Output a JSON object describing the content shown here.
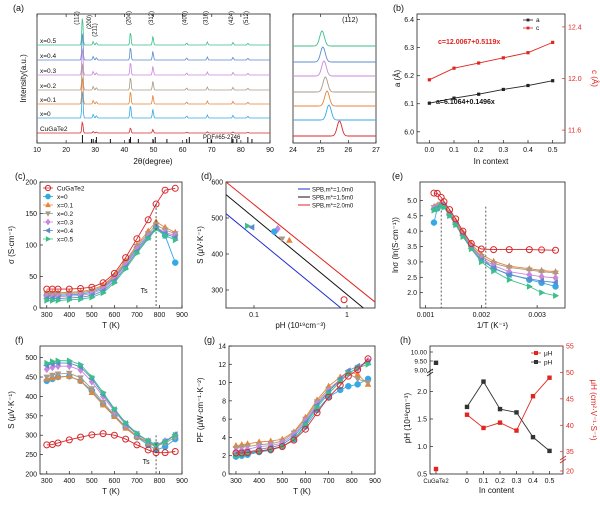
{
  "colors": {
    "red": "#e0261f",
    "black": "#111111",
    "blue": "#1f2fd0",
    "x0": "#35a9e6",
    "x01": "#e7833a",
    "x02": "#a89a86",
    "x03": "#c987dd",
    "x04": "#5b8bcd",
    "x05": "#3cbf8a",
    "cugate": "#d8272b"
  },
  "chart_data": [
    {
      "panel": "(a)",
      "type": "line",
      "xlabel": "2θ(degree)",
      "ylabel": "Intensity(a.u.)",
      "xlim": [
        10,
        90
      ],
      "xticks": [
        10,
        20,
        30,
        40,
        50,
        60,
        70,
        80,
        90
      ],
      "series": [
        {
          "name": "x=0.5",
          "color": "#3cbf8a"
        },
        {
          "name": "x=0.4",
          "color": "#5b8bcd"
        },
        {
          "name": "x=0.3",
          "color": "#c987dd"
        },
        {
          "name": "x=0.2",
          "color": "#a89a86"
        },
        {
          "name": "x=0.1",
          "color": "#e7833a"
        },
        {
          "name": "x=0",
          "color": "#35a9e6"
        },
        {
          "name": "CuGaTe2",
          "color": "#d8272b"
        }
      ],
      "peaks": [
        {
          "label": "(112)",
          "x": 25.6,
          "h": 1.0
        },
        {
          "label": "(200)",
          "x": 29.3,
          "h": 0.12
        },
        {
          "label": "(211)",
          "x": 30.4,
          "h": 0.08
        },
        {
          "label": "(204)",
          "x": 42.1,
          "h": 0.45
        },
        {
          "label": "(312)",
          "x": 49.8,
          "h": 0.3
        },
        {
          "label": "(400)",
          "x": 61.4,
          "h": 0.07
        },
        {
          "label": "(316)",
          "x": 68.5,
          "h": 0.1
        },
        {
          "label": "(424)",
          "x": 77.3,
          "h": 0.09
        },
        {
          "label": "(512)",
          "x": 82.4,
          "h": 0.06
        }
      ],
      "ref_label": "PDF#65-2746",
      "ref_sticks": [
        25.6,
        28.7,
        29.3,
        30.4,
        35.2,
        41.7,
        42.1,
        44.8,
        49.8,
        50.6,
        54.6,
        61.4,
        62.3,
        68.5,
        69.8,
        76.9,
        77.3,
        78.6,
        82.4,
        83.8
      ]
    },
    {
      "panel": "(a) zoom",
      "type": "line",
      "title": "(112)",
      "xlim": [
        24,
        27
      ],
      "xticks": [
        24,
        25,
        26,
        27
      ],
      "peak_positions": [
        25.05,
        25.08,
        25.12,
        25.17,
        25.23,
        25.3,
        25.68
      ]
    },
    {
      "panel": "(b)",
      "type": "line",
      "xlabel": "In context",
      "ylabel": "a (Å)",
      "y2label": "c (Å)",
      "xlim": [
        -0.05,
        0.55
      ],
      "ylim": [
        5.96,
        6.42
      ],
      "y2lim": [
        11.5,
        12.5
      ],
      "xticks": [
        0.0,
        0.1,
        0.2,
        0.3,
        0.4,
        0.5
      ],
      "yticks": [
        6.0,
        6.1,
        6.2,
        6.3,
        6.4
      ],
      "y2ticks": [
        11.6,
        12.0,
        12.4
      ],
      "legend": [
        "a",
        "c"
      ],
      "x": [
        0,
        0.1,
        0.2,
        0.3,
        0.4,
        0.5
      ],
      "a": [
        6.102,
        6.12,
        6.134,
        6.151,
        6.165,
        6.182
      ],
      "c": [
        11.99,
        12.08,
        12.12,
        12.16,
        12.2,
        12.28
      ],
      "fit_a": "a=6.1064+0.1496x",
      "fit_c": "c=12.0067+0.5119x"
    },
    {
      "panel": "(c)",
      "type": "line",
      "xlabel": "T (K)",
      "ylabel": "σ (S·cm⁻¹)",
      "xlim": [
        270,
        900
      ],
      "ylim": [
        0,
        200
      ],
      "xticks": [
        300,
        400,
        500,
        600,
        700,
        800,
        900
      ],
      "yticks": [
        0,
        50,
        100,
        150,
        200
      ],
      "annotation": "Ts",
      "ts_x": 785,
      "legend": [
        "CuGaTe2",
        "x=0",
        "x=0.1",
        "x=0.2",
        "x=0.3",
        "x=0.4",
        "x=0.5"
      ],
      "x": [
        300,
        325,
        350,
        400,
        450,
        500,
        550,
        600,
        650,
        700,
        750,
        785,
        825,
        870
      ],
      "series": [
        {
          "name": "CuGaTe2",
          "values": [
            30,
            30,
            30,
            30,
            31,
            33,
            40,
            55,
            80,
            110,
            140,
            165,
            187,
            190
          ]
        },
        {
          "name": "x=0",
          "values": [
            20,
            20,
            20,
            21,
            22,
            25,
            32,
            48,
            70,
            95,
            115,
            128,
            115,
            72
          ]
        },
        {
          "name": "x=0.1",
          "values": [
            24,
            24,
            24,
            25,
            26,
            29,
            36,
            52,
            75,
            100,
            122,
            137,
            128,
            120
          ]
        },
        {
          "name": "x=0.2",
          "values": [
            22,
            22,
            22,
            23,
            24,
            27,
            34,
            50,
            72,
            98,
            118,
            132,
            124,
            118
          ]
        },
        {
          "name": "x=0.3",
          "values": [
            18,
            18,
            18,
            19,
            20,
            23,
            30,
            46,
            68,
            93,
            114,
            128,
            120,
            115
          ]
        },
        {
          "name": "x=0.4",
          "values": [
            15,
            15,
            15,
            16,
            17,
            20,
            27,
            43,
            65,
            90,
            112,
            127,
            118,
            112
          ]
        },
        {
          "name": "x=0.5",
          "values": [
            12,
            12,
            12,
            13,
            14,
            17,
            24,
            40,
            62,
            87,
            110,
            125,
            115,
            108
          ]
        }
      ]
    },
    {
      "panel": "(d)",
      "type": "scatter",
      "xlabel": "pH (10¹⁹cm⁻³)",
      "ylabel": "S (μV·K⁻¹)",
      "log_x": true,
      "xlim": [
        0.05,
        2
      ],
      "ylim": [
        250,
        600
      ],
      "xticks": [
        0.1,
        1
      ],
      "yticks": [
        300,
        400,
        500,
        600
      ],
      "legend": [
        "SPB,m*=1.0m0",
        "SPB,m*=1.5m0",
        "SPB,m*=2.0m0"
      ],
      "lines": [
        {
          "name": "SPB,m*=1.0m0",
          "color": "#1f2fd0",
          "x": [
            0.05,
            0.86
          ],
          "y": [
            512,
            250
          ]
        },
        {
          "name": "SPB,m*=1.5m0",
          "color": "#111111",
          "x": [
            0.05,
            1.5
          ],
          "y": [
            565,
            250
          ]
        },
        {
          "name": "SPB,m*=2.0m0",
          "color": "#e0261f",
          "x": [
            0.05,
            2.4
          ],
          "y": [
            600,
            250
          ]
        }
      ],
      "points": [
        {
          "x": 0.085,
          "y": 478,
          "s": "x=0.5"
        },
        {
          "x": 0.095,
          "y": 474,
          "s": "x=0.4"
        },
        {
          "x": 0.18,
          "y": 470,
          "s": "x=0.3"
        },
        {
          "x": 0.165,
          "y": 462,
          "s": "x=0"
        },
        {
          "x": 0.2,
          "y": 442,
          "s": "x=0.2"
        },
        {
          "x": 0.24,
          "y": 438,
          "s": "x=0.1"
        },
        {
          "x": 0.93,
          "y": 273,
          "s": "CuGaTe2"
        }
      ]
    },
    {
      "panel": "(e)",
      "type": "line",
      "xlabel": "1/T (K⁻¹)",
      "ylabel": "lnσ (ln(S·cm⁻¹))",
      "xlim": [
        0.0009,
        0.0035
      ],
      "ylim": [
        1.5,
        5.6
      ],
      "xticks": [
        0.001,
        0.002,
        0.003
      ],
      "yticks": [
        2.0,
        2.5,
        3.0,
        3.5,
        4.0,
        4.5,
        5.0
      ],
      "x": [
        0.00115,
        0.00121,
        0.00128,
        0.00133,
        0.00143,
        0.00154,
        0.00167,
        0.00182,
        0.002,
        0.00222,
        0.0025,
        0.00286,
        0.00308,
        0.00333
      ],
      "vlines": [
        0.00128,
        0.00208
      ],
      "series": [
        {
          "name": "CuGaTe2",
          "values": [
            5.24,
            5.23,
            5.1,
            4.96,
            4.7,
            4.4,
            4.0,
            3.6,
            3.42,
            3.4,
            3.4,
            3.4,
            3.39,
            3.38
          ]
        },
        {
          "name": "x=0",
          "values": [
            4.28,
            4.74,
            4.86,
            4.82,
            4.56,
            4.27,
            3.9,
            3.52,
            3.15,
            2.78,
            2.6,
            2.42,
            2.32,
            2.2
          ]
        },
        {
          "name": "x=0.1",
          "values": [
            4.79,
            4.85,
            4.92,
            4.88,
            4.62,
            4.33,
            3.96,
            3.58,
            3.24,
            3.02,
            2.86,
            2.78,
            2.72,
            2.68
          ]
        },
        {
          "name": "x=0.2",
          "values": [
            4.77,
            4.82,
            4.88,
            4.85,
            4.58,
            4.28,
            3.92,
            3.52,
            3.18,
            2.95,
            2.82,
            2.74,
            2.68,
            2.64
          ]
        },
        {
          "name": "x=0.3",
          "values": [
            4.74,
            4.79,
            4.85,
            4.82,
            4.54,
            4.25,
            3.88,
            3.48,
            3.12,
            2.88,
            2.68,
            2.58,
            2.52,
            2.48
          ]
        },
        {
          "name": "x=0.4",
          "values": [
            4.71,
            4.76,
            4.84,
            4.8,
            4.52,
            4.22,
            3.85,
            3.44,
            3.06,
            2.8,
            2.58,
            2.45,
            2.38,
            2.33
          ]
        },
        {
          "name": "x=0.5",
          "values": [
            4.68,
            4.73,
            4.83,
            4.78,
            4.5,
            4.2,
            3.82,
            3.42,
            3.0,
            2.7,
            2.42,
            2.2,
            2.0,
            1.9
          ]
        }
      ]
    },
    {
      "panel": "(f)",
      "type": "line",
      "xlabel": "T (K)",
      "ylabel": "S (μV·K⁻¹)",
      "xlim": [
        270,
        900
      ],
      "ylim": [
        200,
        530
      ],
      "xticks": [
        300,
        400,
        500,
        600,
        700,
        800,
        900
      ],
      "yticks": [
        200,
        250,
        300,
        350,
        400,
        450,
        500
      ],
      "annotation": "Ts",
      "ts_x": 785,
      "x": [
        300,
        325,
        350,
        400,
        450,
        500,
        550,
        600,
        650,
        700,
        750,
        785,
        825,
        870
      ],
      "series": [
        {
          "name": "CuGaTe2",
          "values": [
            275,
            276,
            280,
            288,
            295,
            301,
            304,
            300,
            290,
            275,
            262,
            255,
            255,
            258
          ]
        },
        {
          "name": "x=0",
          "values": [
            440,
            445,
            450,
            452,
            440,
            415,
            380,
            350,
            320,
            295,
            275,
            262,
            270,
            290
          ]
        },
        {
          "name": "x=0.1",
          "values": [
            445,
            448,
            450,
            452,
            440,
            410,
            378,
            348,
            318,
            296,
            280,
            270,
            283,
            300
          ]
        },
        {
          "name": "x=0.2",
          "values": [
            450,
            455,
            458,
            460,
            448,
            420,
            385,
            352,
            322,
            298,
            282,
            272,
            280,
            294
          ]
        },
        {
          "name": "x=0.3",
          "values": [
            470,
            475,
            478,
            478,
            468,
            438,
            400,
            362,
            328,
            302,
            285,
            275,
            285,
            300
          ]
        },
        {
          "name": "x=0.4",
          "values": [
            480,
            484,
            486,
            486,
            476,
            446,
            405,
            366,
            330,
            303,
            285,
            275,
            284,
            302
          ]
        },
        {
          "name": "x=0.5",
          "values": [
            486,
            490,
            492,
            492,
            482,
            450,
            410,
            368,
            332,
            305,
            285,
            275,
            283,
            300
          ]
        }
      ]
    },
    {
      "panel": "(g)",
      "type": "line",
      "xlabel": "T (K)",
      "ylabel": "PF (μW·cm⁻¹·K⁻²)",
      "xlim": [
        270,
        900
      ],
      "ylim": [
        0,
        14
      ],
      "xticks": [
        300,
        400,
        500,
        600,
        700,
        800,
        900
      ],
      "yticks": [
        0,
        2,
        4,
        6,
        8,
        10,
        12,
        14
      ],
      "x": [
        300,
        325,
        350,
        400,
        450,
        500,
        550,
        600,
        650,
        700,
        750,
        785,
        825,
        870
      ],
      "series": [
        {
          "name": "CuGaTe2",
          "values": [
            2.3,
            2.3,
            2.35,
            2.5,
            2.7,
            3.0,
            3.7,
            4.9,
            6.7,
            8.4,
            9.7,
            10.7,
            11.4,
            12.6
          ]
        },
        {
          "name": "x=0",
          "values": [
            1.9,
            2.0,
            2.1,
            2.4,
            2.6,
            3.0,
            3.8,
            5.2,
            7.0,
            8.4,
            9.2,
            9.6,
            9.8,
            10.4
          ]
        },
        {
          "name": "x=0.1",
          "values": [
            3.1,
            3.2,
            3.3,
            3.5,
            3.6,
            3.8,
            4.6,
            6.2,
            8.1,
            9.6,
            10.6,
            11.2,
            10.9,
            9.8
          ]
        },
        {
          "name": "x=0.2",
          "values": [
            2.8,
            2.9,
            3.0,
            3.2,
            3.3,
            3.6,
            4.5,
            6.0,
            7.9,
            9.3,
            10.3,
            11.0,
            10.4,
            10.0
          ]
        },
        {
          "name": "x=0.3",
          "values": [
            2.5,
            2.6,
            2.7,
            3.0,
            3.1,
            3.4,
            4.3,
            5.8,
            7.7,
            9.1,
            10.2,
            11.1,
            11.5,
            12.4
          ]
        },
        {
          "name": "x=0.4",
          "values": [
            2.2,
            2.3,
            2.4,
            2.7,
            2.9,
            3.2,
            4.1,
            5.6,
            7.5,
            9.0,
            10.4,
            11.3,
            11.8,
            12.2
          ]
        },
        {
          "name": "x=0.5",
          "values": [
            2.0,
            2.1,
            2.2,
            2.5,
            2.7,
            3.0,
            3.8,
            5.4,
            7.3,
            8.8,
            10.1,
            11.0,
            11.6,
            12.0
          ]
        }
      ]
    },
    {
      "panel": "(h)",
      "type": "line",
      "xlabel": "In content",
      "ylabel": "pH (10¹⁸cm⁻³)",
      "y2label": "μH (cm²·V⁻¹·S⁻¹)",
      "categories": [
        "CuGaTe2",
        "0",
        "0.1",
        "0.2",
        "0.3",
        "0.4",
        "0.5"
      ],
      "yticks_lower": [
        0.5,
        1.0,
        1.5,
        2.0
      ],
      "yticks_upper": [
        9.0,
        9.5,
        10.0
      ],
      "y2lim": [
        20,
        55
      ],
      "y2ticks": [
        20,
        35,
        40,
        45,
        50,
        55
      ],
      "legend": [
        "pH",
        "μH"
      ],
      "pH": [
        9.4,
        1.72,
        2.18,
        1.68,
        1.62,
        1.17,
        0.92
      ],
      "muH": [
        21.0,
        42.0,
        39.5,
        40.5,
        39.0,
        45.5,
        49.0
      ]
    }
  ],
  "labels": {
    "a": "(a)",
    "b": "(b)",
    "c": "(c)",
    "d": "(d)",
    "e": "(e)",
    "f": "(f)",
    "g": "(g)",
    "h": "(h)"
  }
}
